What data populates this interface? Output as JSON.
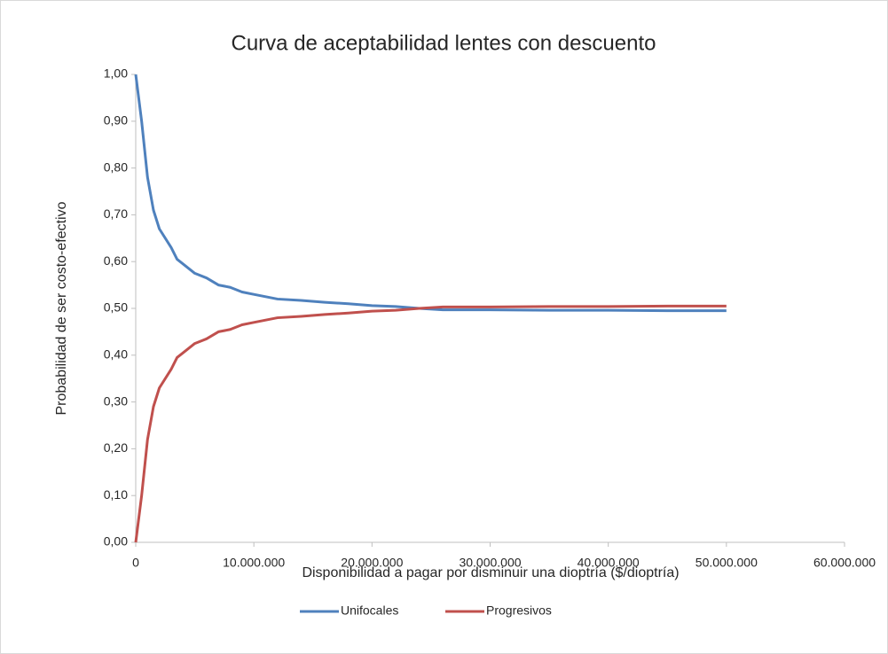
{
  "chart_data": {
    "type": "line",
    "title": "Curva de aceptabilidad lentes con descuento",
    "x_label": "Disponibilidad a pagar por disminuir una dioptría ($/dioptría)",
    "y_label": "Probabilidad de ser costo-efectivo",
    "x": [
      0,
      500000,
      1000000,
      1500000,
      2000000,
      3000000,
      3500000,
      4000000,
      5000000,
      6000000,
      7000000,
      8000000,
      9000000,
      10000000,
      12000000,
      14000000,
      16000000,
      18000000,
      20000000,
      22000000,
      24000000,
      26000000,
      30000000,
      35000000,
      40000000,
      45000000,
      50000000
    ],
    "series": [
      {
        "name": "Unifocales",
        "color": "#4f81bd",
        "values": [
          1.0,
          0.9,
          0.78,
          0.71,
          0.67,
          0.63,
          0.605,
          0.595,
          0.575,
          0.565,
          0.55,
          0.545,
          0.535,
          0.53,
          0.52,
          0.517,
          0.513,
          0.51,
          0.506,
          0.504,
          0.5,
          0.497,
          0.497,
          0.496,
          0.496,
          0.495,
          0.495
        ]
      },
      {
        "name": "Progresivos",
        "color": "#c0504d",
        "values": [
          0.0,
          0.1,
          0.22,
          0.29,
          0.33,
          0.37,
          0.395,
          0.405,
          0.425,
          0.435,
          0.45,
          0.455,
          0.465,
          0.47,
          0.48,
          0.483,
          0.487,
          0.49,
          0.494,
          0.496,
          0.5,
          0.503,
          0.503,
          0.504,
          0.504,
          0.505,
          0.505
        ]
      }
    ],
    "xlim": [
      0,
      60000000
    ],
    "xticks": [
      {
        "value": 0,
        "label": "0"
      },
      {
        "value": 10000000,
        "label": "10.000.000"
      },
      {
        "value": 20000000,
        "label": "20.000.000"
      },
      {
        "value": 30000000,
        "label": "30.000.000"
      },
      {
        "value": 40000000,
        "label": "40.000.000"
      },
      {
        "value": 50000000,
        "label": "50.000.000"
      },
      {
        "value": 60000000,
        "label": "60.000.000"
      }
    ],
    "ylim": [
      0,
      1
    ],
    "yticks": [
      {
        "value": 0,
        "label": "0,00"
      },
      {
        "value": 0.1,
        "label": "0,10"
      },
      {
        "value": 0.2,
        "label": "0,20"
      },
      {
        "value": 0.3,
        "label": "0,30"
      },
      {
        "value": 0.4,
        "label": "0,40"
      },
      {
        "value": 0.5,
        "label": "0,50"
      },
      {
        "value": 0.6,
        "label": "0,60"
      },
      {
        "value": 0.7,
        "label": "0,70"
      },
      {
        "value": 0.8,
        "label": "0,80"
      },
      {
        "value": 0.9,
        "label": "0,90"
      },
      {
        "value": 1,
        "label": "1,00"
      }
    ],
    "grid": false,
    "legend": "bottom"
  }
}
